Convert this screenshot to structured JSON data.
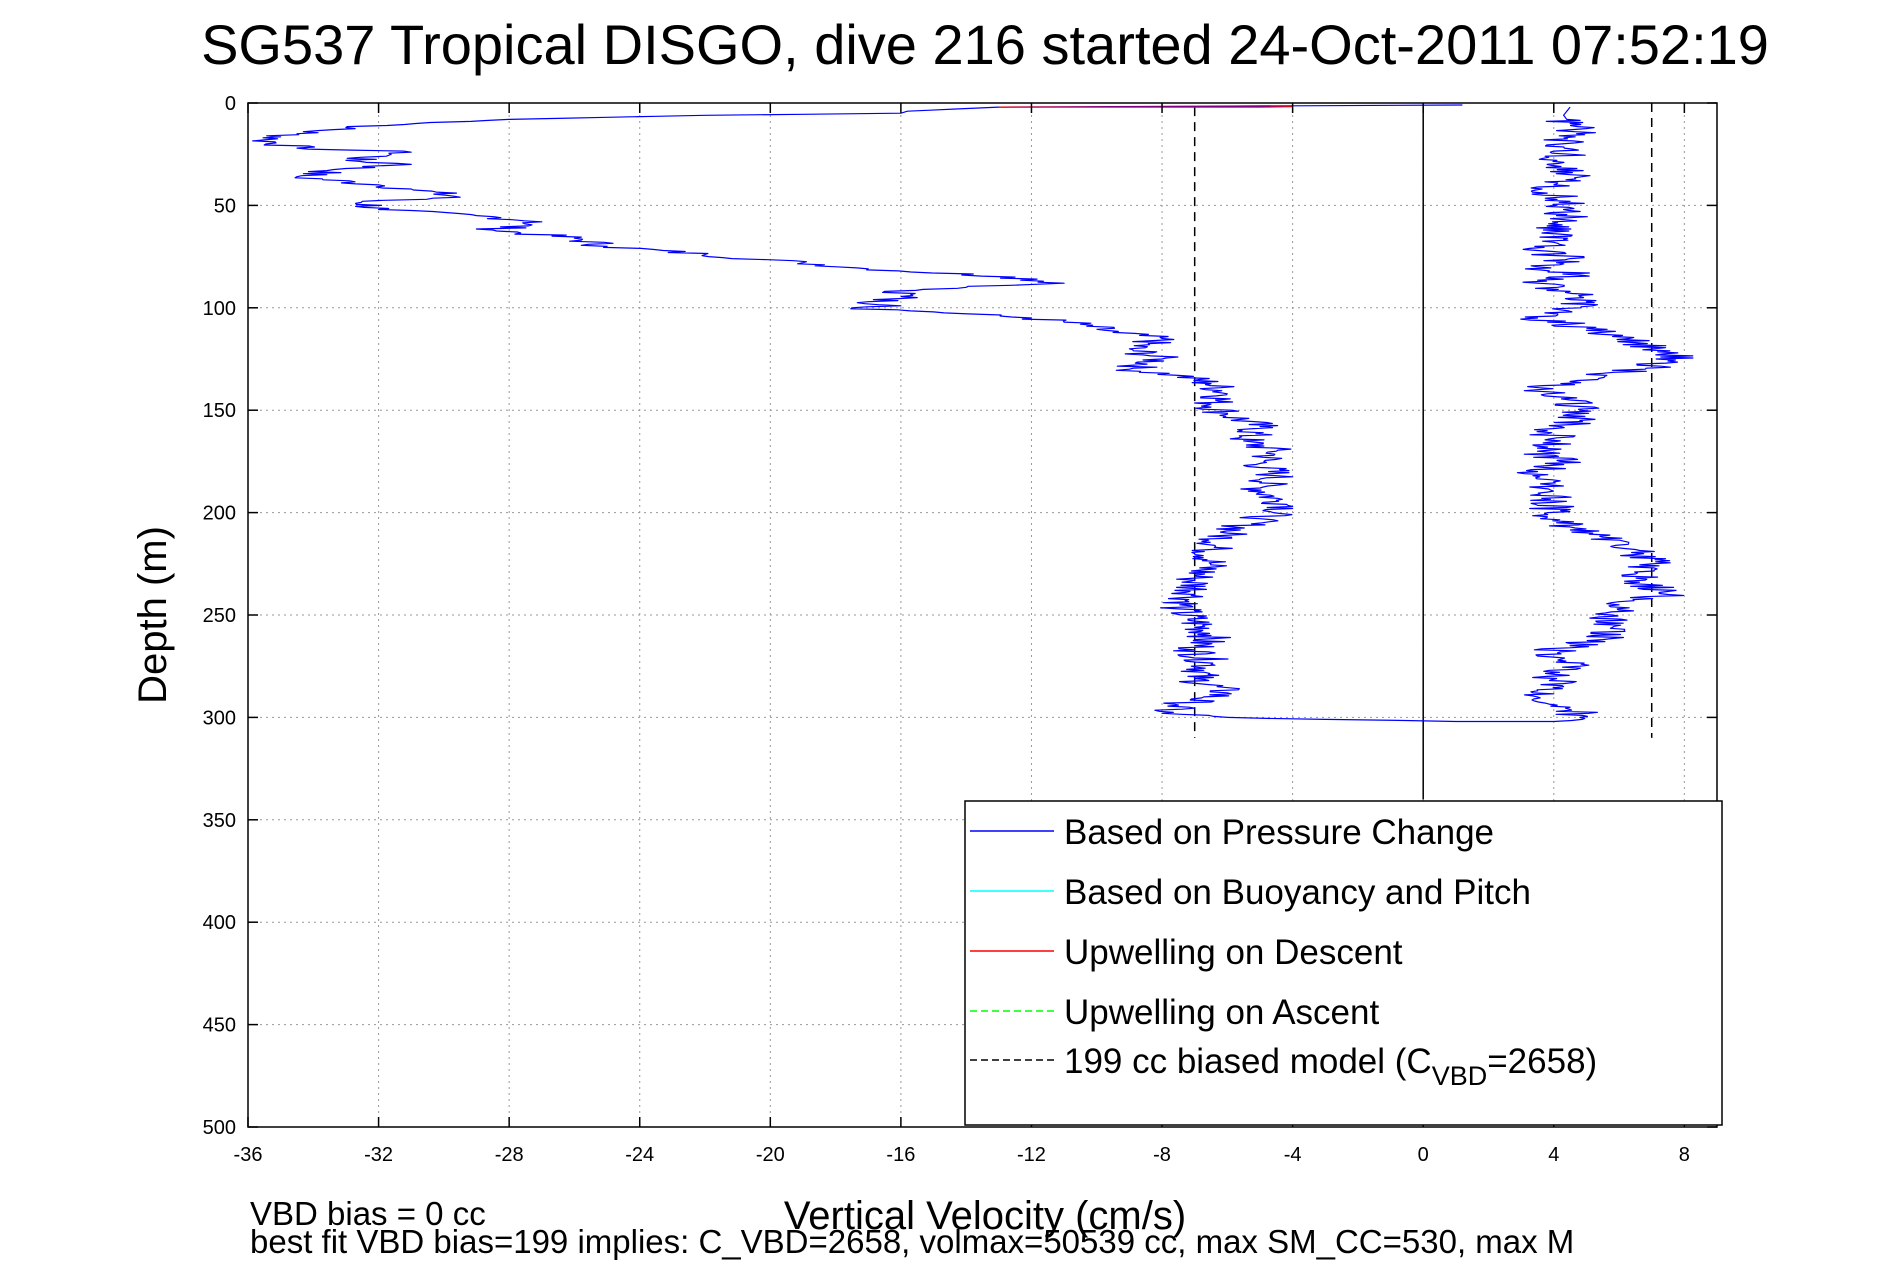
{
  "chart_data": {
    "type": "line",
    "title": "SG537 Tropical DISGO, dive 216 started 24-Oct-2011 07:52:19",
    "xlabel": "Vertical Velocity (cm/s)",
    "ylabel": "Depth (m)",
    "xlim": [
      -36,
      9
    ],
    "ylim": [
      500,
      0
    ],
    "y_reversed": true,
    "grid": true,
    "xticks": [
      "-36",
      "-32",
      "-28",
      "-24",
      "-20",
      "-16",
      "-12",
      "-8",
      "-4",
      "0",
      "4",
      "8"
    ],
    "yticks": [
      "0",
      "50",
      "100",
      "150",
      "200",
      "250",
      "300",
      "350",
      "400",
      "450",
      "500"
    ],
    "legend_position": "bottom-right",
    "legend": [
      {
        "label": "Based on Pressure Change",
        "color": "#0000ff",
        "style": "solid"
      },
      {
        "label": "Based on Buoyancy and Pitch",
        "color": "#00ffff",
        "style": "solid"
      },
      {
        "label": "Upwelling on Descent",
        "color": "#ff0000",
        "style": "solid"
      },
      {
        "label": "Upwelling on Ascent",
        "color": "#00ff00",
        "style": "dashed"
      },
      {
        "label_prefix": "199 cc biased model (C",
        "label_sub": "VBD",
        "label_suffix": "=2658)",
        "color": "#000000",
        "style": "dashed"
      }
    ],
    "series": [
      {
        "name": "Based on Pressure Change (descent)",
        "color": "#0000ff",
        "points": [
          [
            1.2,
            1
          ],
          [
            -13,
            2
          ],
          [
            -15.8,
            4
          ],
          [
            -16,
            5
          ],
          [
            -22,
            6
          ],
          [
            -28,
            8
          ],
          [
            -33,
            12
          ],
          [
            -34.5,
            15
          ],
          [
            -35.5,
            18
          ],
          [
            -34.5,
            22
          ],
          [
            -31,
            24
          ],
          [
            -33,
            28
          ],
          [
            -31,
            30
          ],
          [
            -33,
            32
          ],
          [
            -34.5,
            36
          ],
          [
            -32,
            40
          ],
          [
            -31,
            42
          ],
          [
            -29.5,
            46
          ],
          [
            -32.5,
            48
          ],
          [
            -32,
            52
          ],
          [
            -29,
            55
          ],
          [
            -27,
            58
          ],
          [
            -28.5,
            62
          ],
          [
            -26,
            66
          ],
          [
            -25,
            70
          ],
          [
            -22,
            74
          ],
          [
            -19,
            78
          ],
          [
            -17,
            81
          ],
          [
            -12.5,
            85
          ],
          [
            -11,
            88
          ],
          [
            -14,
            90
          ],
          [
            -16.5,
            92
          ],
          [
            -15.5,
            95
          ],
          [
            -17,
            97
          ],
          [
            -16,
            99
          ],
          [
            -17.5,
            100
          ],
          [
            -15,
            102
          ],
          [
            -12,
            105
          ],
          [
            -10.5,
            108
          ],
          [
            -9.5,
            112
          ],
          [
            -8,
            115
          ],
          [
            -9,
            120
          ],
          [
            -8,
            125
          ],
          [
            -9,
            130
          ],
          [
            -7.5,
            133
          ],
          [
            -6.5,
            137
          ],
          [
            -6,
            142
          ],
          [
            -6.5,
            147
          ],
          [
            -6,
            152
          ],
          [
            -5,
            158
          ],
          [
            -5.5,
            165
          ],
          [
            -4.5,
            170
          ],
          [
            -5,
            176
          ],
          [
            -4.5,
            182
          ],
          [
            -5,
            188
          ],
          [
            -4.5,
            194
          ],
          [
            -4,
            197
          ],
          [
            -5,
            203
          ],
          [
            -6,
            210
          ],
          [
            -6.5,
            218
          ],
          [
            -6.5,
            225
          ],
          [
            -7,
            232
          ],
          [
            -7,
            240
          ],
          [
            -7.5,
            247
          ],
          [
            -7,
            253
          ],
          [
            -6.5,
            260
          ],
          [
            -7,
            267
          ],
          [
            -6.5,
            274
          ],
          [
            -7,
            281
          ],
          [
            -6,
            288
          ],
          [
            -7.5,
            294
          ],
          [
            -8,
            298
          ],
          [
            -6,
            300
          ]
        ]
      },
      {
        "name": "Based on Pressure Change (ascent)",
        "color": "#0000ff",
        "points": [
          [
            -6,
            300
          ],
          [
            -3,
            301
          ],
          [
            1,
            302
          ],
          [
            4,
            302
          ],
          [
            4.8,
            300
          ],
          [
            4.5,
            295
          ],
          [
            3.5,
            290
          ],
          [
            4.3,
            285
          ],
          [
            3.8,
            280
          ],
          [
            4.8,
            275
          ],
          [
            3.5,
            270
          ],
          [
            4.5,
            265
          ],
          [
            5.5,
            262
          ],
          [
            5.8,
            256
          ],
          [
            5.8,
            250
          ],
          [
            6,
            245
          ],
          [
            7.5,
            240
          ],
          [
            6.8,
            235
          ],
          [
            6.5,
            230
          ],
          [
            7,
            225
          ],
          [
            6.5,
            218
          ],
          [
            5.5,
            212
          ],
          [
            4.5,
            207
          ],
          [
            3.8,
            202
          ],
          [
            4,
            195
          ],
          [
            3.8,
            190
          ],
          [
            4,
            185
          ],
          [
            3.5,
            180
          ],
          [
            4.2,
            175
          ],
          [
            3.5,
            170
          ],
          [
            4.2,
            165
          ],
          [
            3.8,
            160
          ],
          [
            4.8,
            155
          ],
          [
            4.8,
            150
          ],
          [
            4.5,
            145
          ],
          [
            3.5,
            140
          ],
          [
            4.5,
            136
          ],
          [
            5.5,
            132
          ],
          [
            6.8,
            130
          ],
          [
            7.5,
            126
          ],
          [
            7.8,
            122
          ],
          [
            6.5,
            117
          ],
          [
            5.5,
            113
          ],
          [
            4.5,
            108
          ],
          [
            3.5,
            105
          ],
          [
            4.2,
            101
          ],
          [
            5,
            97
          ],
          [
            4.5,
            92
          ],
          [
            3.5,
            88
          ],
          [
            4.8,
            84
          ],
          [
            3.5,
            80
          ],
          [
            4.5,
            76
          ],
          [
            3.5,
            72
          ],
          [
            4,
            68
          ],
          [
            4.2,
            64
          ],
          [
            3.8,
            60
          ],
          [
            4.5,
            56
          ],
          [
            4.3,
            52
          ],
          [
            4.5,
            48
          ],
          [
            3.8,
            44
          ],
          [
            4,
            40
          ],
          [
            4.5,
            35
          ],
          [
            3.8,
            30
          ],
          [
            4.5,
            25
          ],
          [
            4.2,
            20
          ],
          [
            4.7,
            15
          ],
          [
            4.5,
            10
          ],
          [
            4.3,
            6
          ],
          [
            4.5,
            2
          ]
        ]
      },
      {
        "name": "Upwelling on Descent",
        "color": "#ff0000",
        "points": [
          [
            -13,
            2
          ],
          [
            -8.5,
            2
          ],
          [
            -5,
            2
          ],
          [
            -4,
            1.8
          ]
        ]
      },
      {
        "name": "Upwelling on Ascent",
        "color": "#00ff00",
        "points": [
          [
            0,
            0.5
          ],
          [
            0,
            2.5
          ]
        ]
      }
    ],
    "reference_lines": [
      {
        "name": "biased model descent",
        "x": -7,
        "y_from": 2,
        "y_to": 310,
        "color": "#000000",
        "style": "dashed"
      },
      {
        "name": "biased model ascent",
        "x": 7,
        "y_from": 0,
        "y_to": 310,
        "color": "#000000",
        "style": "dashed"
      },
      {
        "name": "zero line",
        "x": 0,
        "y_from": 0,
        "y_to": 340,
        "color": "#000000",
        "style": "solid"
      }
    ],
    "annotations": [
      "VBD bias = 0 cc",
      "best fit VBD bias=199 implies: C_VBD=2658, volmax=50539 cc, max SM_CC=530, max M"
    ]
  }
}
